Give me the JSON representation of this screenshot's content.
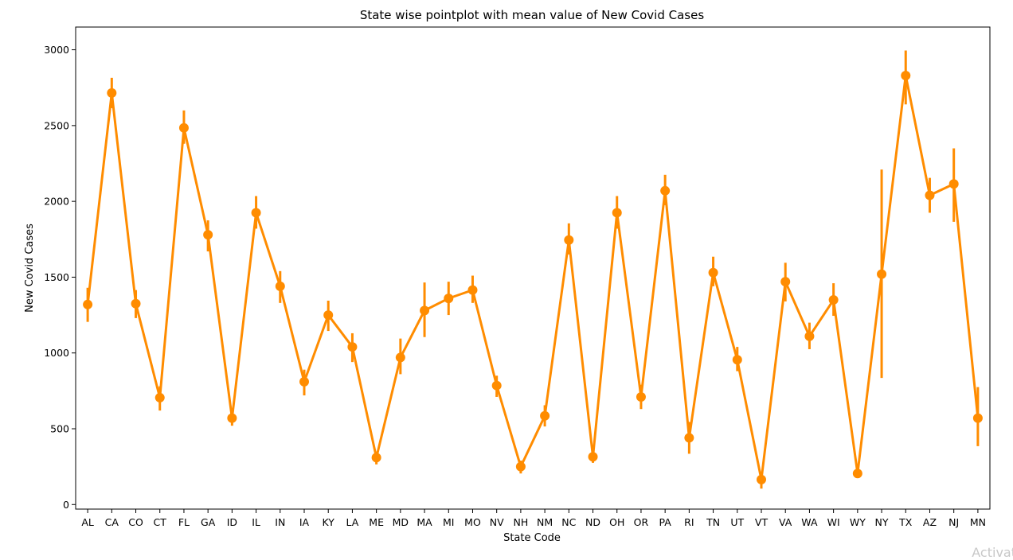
{
  "chart_data": {
    "type": "line",
    "title": "State wise pointplot with mean value of New Covid Cases",
    "xlabel": "State Code",
    "ylabel": "New Covid Cases",
    "ylim": [
      -30,
      3150
    ],
    "yticks": [
      0,
      500,
      1000,
      1500,
      2000,
      2500,
      3000
    ],
    "grid": false,
    "color": "#ff8c00",
    "categories": [
      "AL",
      "CA",
      "CO",
      "CT",
      "FL",
      "GA",
      "ID",
      "IL",
      "IN",
      "IA",
      "KY",
      "LA",
      "ME",
      "MD",
      "MA",
      "MI",
      "MO",
      "NV",
      "NH",
      "NM",
      "NC",
      "ND",
      "OH",
      "OR",
      "PA",
      "RI",
      "TN",
      "UT",
      "VT",
      "VA",
      "WA",
      "WI",
      "WY",
      "NY",
      "TX",
      "AZ",
      "NJ",
      "MN"
    ],
    "series": [
      {
        "values": [
          1320,
          2715,
          1325,
          705,
          2485,
          1780,
          570,
          1925,
          1440,
          810,
          1250,
          1040,
          310,
          970,
          1280,
          1360,
          1415,
          785,
          250,
          585,
          1745,
          315,
          1925,
          710,
          2070,
          440,
          1530,
          955,
          165,
          1470,
          1110,
          1350,
          205,
          1520,
          2830,
          2040,
          2115,
          570
        ],
        "ci_low": [
          1205,
          2615,
          1230,
          620,
          2380,
          1670,
          520,
          1820,
          1330,
          720,
          1145,
          940,
          265,
          860,
          1105,
          1250,
          1330,
          710,
          205,
          515,
          1650,
          275,
          1820,
          630,
          1975,
          335,
          1440,
          880,
          105,
          1340,
          1025,
          1245,
          185,
          835,
          2640,
          1925,
          1865,
          385
        ],
        "ci_high": [
          1430,
          2815,
          1415,
          780,
          2600,
          1875,
          620,
          2035,
          1540,
          890,
          1345,
          1130,
          350,
          1095,
          1465,
          1470,
          1510,
          850,
          290,
          655,
          1855,
          355,
          2035,
          790,
          2175,
          545,
          1635,
          1040,
          215,
          1595,
          1200,
          1460,
          225,
          2210,
          2995,
          2155,
          2350,
          775
        ]
      }
    ]
  },
  "watermark_text": "Activat"
}
